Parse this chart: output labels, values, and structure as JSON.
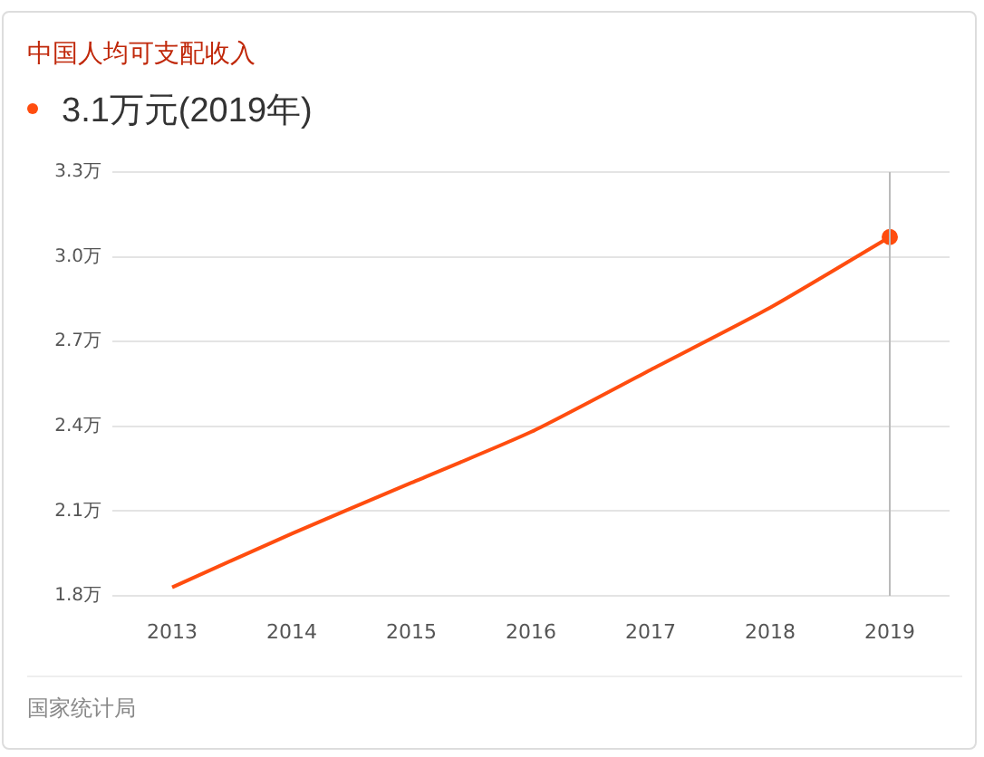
{
  "chart_data": {
    "type": "line",
    "title": "中国人均可支配收入",
    "subtitle": "3.1万元(2019年)",
    "categories": [
      "2013",
      "2014",
      "2015",
      "2016",
      "2017",
      "2018",
      "2019"
    ],
    "series": [
      {
        "color": "#ff4d0f",
        "marker": "none",
        "values": [
          1.83,
          2.02,
          2.2,
          2.38,
          2.6,
          2.82,
          3.07
        ]
      },
      {
        "type": "scatter",
        "color": "#ff4d0f",
        "marker": "circle",
        "values": [
          null,
          null,
          null,
          null,
          null,
          null,
          3.07
        ]
      }
    ],
    "ylim": [
      1.8,
      3.3
    ],
    "yticks": [
      {
        "value": 1.8,
        "label": "1.8万"
      },
      {
        "value": 2.1,
        "label": "2.1万"
      },
      {
        "value": 2.4,
        "label": "2.4万"
      },
      {
        "value": 2.7,
        "label": "2.7万"
      },
      {
        "value": 3.0,
        "label": "3.0万"
      },
      {
        "value": 3.3,
        "label": "3.3万"
      }
    ],
    "ref_lines": [
      {
        "axis": "x",
        "value": "2019",
        "color": "#bbbbbb"
      }
    ],
    "grid": "y",
    "line_style": "solid",
    "annotations": [
      "国家统计局"
    ]
  }
}
